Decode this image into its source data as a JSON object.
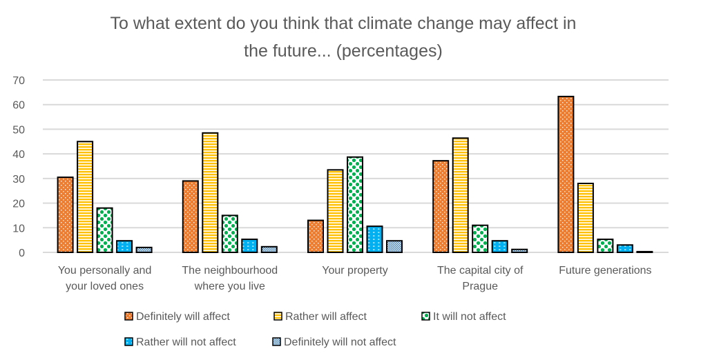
{
  "chart_data": {
    "type": "bar",
    "title": "To what extent do you think that climate change may affect in the future...  (percentages)",
    "title_lines": [
      "To what extent do you think that climate change may affect in",
      "the future...  (percentages)"
    ],
    "xlabel": "",
    "ylabel": "",
    "ylim": [
      0,
      70
    ],
    "yticks": [
      0,
      10,
      20,
      30,
      40,
      50,
      60,
      70
    ],
    "grid": true,
    "legend_position": "bottom",
    "categories": [
      "You personally and your loved ones",
      "The neighbourhood where you live",
      "Your property",
      "The capital city of Prague",
      "Future generations"
    ],
    "category_lines": [
      [
        "You personally and",
        "your loved ones"
      ],
      [
        "The neighbourhood",
        "where you live"
      ],
      [
        "Your property"
      ],
      [
        "The capital city of",
        "Prague"
      ],
      [
        "Future generations"
      ]
    ],
    "series": [
      {
        "name": "Definitely will affect",
        "color": "#ED7D31",
        "pattern": "dots",
        "values": [
          30.5,
          29.0,
          13.0,
          37.2,
          63.3
        ]
      },
      {
        "name": "Rather will affect",
        "color": "#FFC000",
        "pattern": "hstripes",
        "values": [
          45.0,
          48.5,
          33.5,
          46.4,
          28.0
        ]
      },
      {
        "name": "It will not affect",
        "color": "#00B050",
        "pattern": "checker",
        "values": [
          18.0,
          15.0,
          38.7,
          11.0,
          5.3
        ]
      },
      {
        "name": "Rather will not affect",
        "color": "#00B0F0",
        "pattern": "dashes",
        "values": [
          4.7,
          5.3,
          10.6,
          4.7,
          3.0
        ]
      },
      {
        "name": "Definitely will not affect",
        "color": "#2E75B6",
        "pattern": "fine-checker",
        "values": [
          2.0,
          2.3,
          4.7,
          1.2,
          0.3
        ]
      }
    ]
  }
}
